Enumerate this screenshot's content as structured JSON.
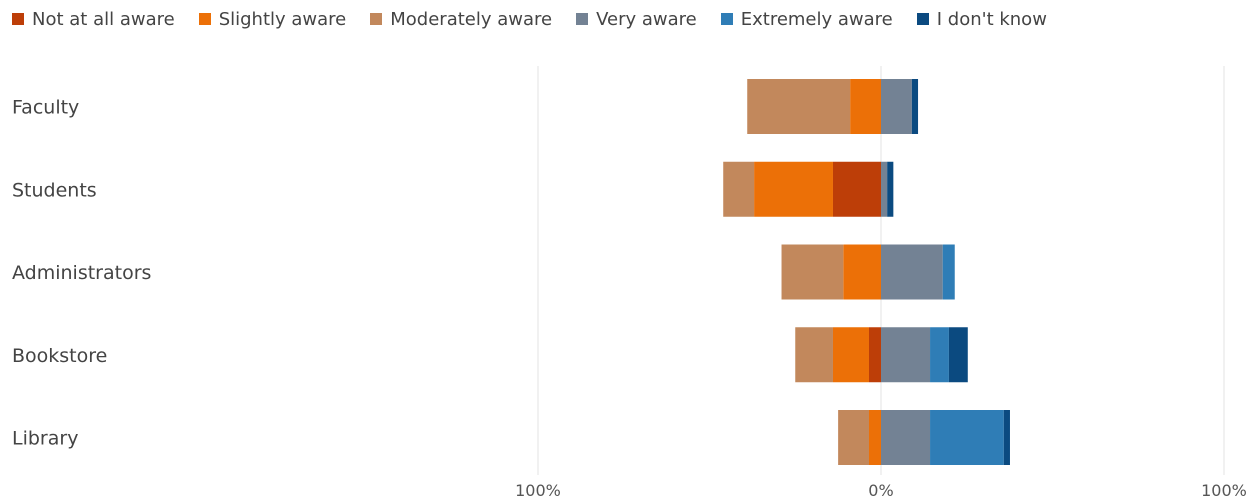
{
  "chart_data": {
    "type": "bar",
    "orientation": "horizontal",
    "stacked": "diverging",
    "categories": [
      "Faculty",
      "Students",
      "Administrators",
      "Bookstore",
      "Library"
    ],
    "series": [
      {
        "name": "Not at all aware",
        "color": "#BD3E08",
        "side": "left",
        "values": [
          0,
          14,
          0,
          3.5,
          0
        ]
      },
      {
        "name": "Slightly aware",
        "color": "#EC7007",
        "side": "left",
        "values": [
          9,
          23,
          11,
          10.5,
          3.5
        ]
      },
      {
        "name": "Moderately aware",
        "color": "#C2885C",
        "side": "left",
        "values": [
          30,
          9,
          18,
          11,
          9
        ]
      },
      {
        "name": "Very aware",
        "color": "#738294",
        "side": "right",
        "values": [
          9,
          1.8,
          18,
          14.3,
          14.3
        ]
      },
      {
        "name": "Extremely aware",
        "color": "#2F7DB6",
        "side": "right",
        "values": [
          0,
          0,
          3.5,
          5.5,
          21.5
        ]
      },
      {
        "name": "I don't know",
        "color": "#0B4A80",
        "side": "right",
        "values": [
          1.8,
          1.8,
          0,
          5.5,
          1.8
        ]
      }
    ],
    "xlim": [
      -100,
      100
    ],
    "x_ticks": [
      {
        "value": -100,
        "label": "100%"
      },
      {
        "value": 0,
        "label": "0%"
      },
      {
        "value": 100,
        "label": "100%"
      }
    ],
    "legend_position": "top-left",
    "grid": true
  }
}
